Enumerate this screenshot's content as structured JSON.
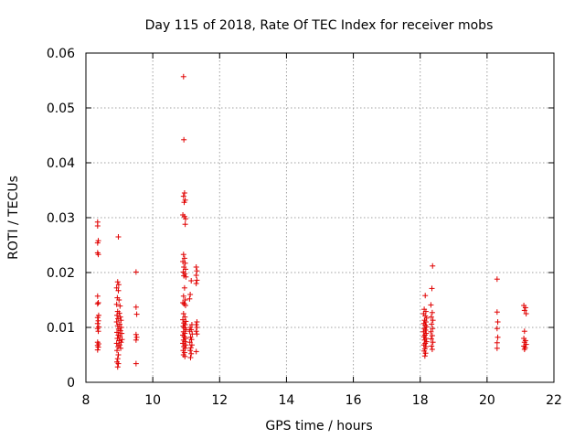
{
  "chart_data": {
    "type": "scatter",
    "title": "Day 115 of 2018, Rate Of TEC Index for receiver mobs",
    "xlabel": "GPS time / hours",
    "ylabel": "ROTI / TECUs",
    "xlim": [
      8,
      22
    ],
    "ylim": [
      0,
      0.06
    ],
    "xticks": [
      "8",
      "10",
      "12",
      "14",
      "16",
      "18",
      "20",
      "22"
    ],
    "yticks": [
      "0",
      "0.01",
      "0.02",
      "0.03",
      "0.04",
      "0.05",
      "0.06"
    ],
    "grid": true,
    "marker": "+",
    "color": "#e00000",
    "series": [
      {
        "name": "mobs",
        "points": [
          [
            8.35,
            0.0292
          ],
          [
            8.35,
            0.0285
          ],
          [
            8.37,
            0.0258
          ],
          [
            8.35,
            0.0254
          ],
          [
            8.35,
            0.0236
          ],
          [
            8.37,
            0.0233
          ],
          [
            8.35,
            0.0157
          ],
          [
            8.37,
            0.0145
          ],
          [
            8.35,
            0.0143
          ],
          [
            8.38,
            0.0122
          ],
          [
            8.35,
            0.0118
          ],
          [
            8.37,
            0.0112
          ],
          [
            8.35,
            0.0107
          ],
          [
            8.38,
            0.0101
          ],
          [
            8.35,
            0.0098
          ],
          [
            8.37,
            0.0093
          ],
          [
            8.35,
            0.0073
          ],
          [
            8.38,
            0.007
          ],
          [
            8.35,
            0.0067
          ],
          [
            8.37,
            0.0064
          ],
          [
            8.35,
            0.0059
          ],
          [
            8.97,
            0.0265
          ],
          [
            8.95,
            0.0183
          ],
          [
            8.98,
            0.0178
          ],
          [
            8.92,
            0.0172
          ],
          [
            8.97,
            0.0167
          ],
          [
            8.94,
            0.0154
          ],
          [
            8.99,
            0.015
          ],
          [
            8.92,
            0.0142
          ],
          [
            9.02,
            0.0139
          ],
          [
            8.95,
            0.0129
          ],
          [
            9.0,
            0.0126
          ],
          [
            8.93,
            0.0122
          ],
          [
            9.03,
            0.0119
          ],
          [
            8.96,
            0.0116
          ],
          [
            9.05,
            0.0113
          ],
          [
            8.92,
            0.011
          ],
          [
            9.01,
            0.0106
          ],
          [
            8.95,
            0.0103
          ],
          [
            9.06,
            0.01
          ],
          [
            8.98,
            0.0097
          ],
          [
            9.03,
            0.0094
          ],
          [
            8.93,
            0.0091
          ],
          [
            9.07,
            0.0089
          ],
          [
            8.97,
            0.0086
          ],
          [
            9.02,
            0.0083
          ],
          [
            8.94,
            0.008
          ],
          [
            9.08,
            0.0078
          ],
          [
            8.99,
            0.0076
          ],
          [
            9.05,
            0.0073
          ],
          [
            8.92,
            0.0071
          ],
          [
            9.01,
            0.0068
          ],
          [
            8.96,
            0.0065
          ],
          [
            9.04,
            0.0062
          ],
          [
            8.93,
            0.0058
          ],
          [
            8.97,
            0.005
          ],
          [
            8.95,
            0.0043
          ],
          [
            8.93,
            0.0037
          ],
          [
            8.97,
            0.0034
          ],
          [
            8.95,
            0.0028
          ],
          [
            9.5,
            0.0201
          ],
          [
            9.5,
            0.0137
          ],
          [
            9.52,
            0.0124
          ],
          [
            9.5,
            0.0087
          ],
          [
            9.52,
            0.0082
          ],
          [
            9.5,
            0.0077
          ],
          [
            9.5,
            0.0034
          ],
          [
            10.92,
            0.0557
          ],
          [
            10.93,
            0.0442
          ],
          [
            10.95,
            0.0345
          ],
          [
            10.92,
            0.0339
          ],
          [
            10.97,
            0.0332
          ],
          [
            10.94,
            0.0328
          ],
          [
            10.9,
            0.0305
          ],
          [
            10.95,
            0.0302
          ],
          [
            10.98,
            0.0298
          ],
          [
            10.97,
            0.0288
          ],
          [
            10.92,
            0.0233
          ],
          [
            10.95,
            0.0226
          ],
          [
            10.9,
            0.022
          ],
          [
            10.97,
            0.0217
          ],
          [
            10.93,
            0.021
          ],
          [
            10.98,
            0.0206
          ],
          [
            10.91,
            0.0201
          ],
          [
            10.96,
            0.0198
          ],
          [
            10.93,
            0.0194
          ],
          [
            10.99,
            0.0192
          ],
          [
            10.95,
            0.0172
          ],
          [
            10.92,
            0.0157
          ],
          [
            10.97,
            0.015
          ],
          [
            10.9,
            0.0145
          ],
          [
            10.94,
            0.0143
          ],
          [
            10.98,
            0.014
          ],
          [
            10.92,
            0.0125
          ],
          [
            10.96,
            0.0119
          ],
          [
            10.9,
            0.0114
          ],
          [
            10.99,
            0.0111
          ],
          [
            10.93,
            0.0108
          ],
          [
            10.97,
            0.0105
          ],
          [
            10.91,
            0.0102
          ],
          [
            10.95,
            0.0099
          ],
          [
            10.99,
            0.0096
          ],
          [
            10.92,
            0.0092
          ],
          [
            10.96,
            0.0089
          ],
          [
            10.9,
            0.0086
          ],
          [
            10.94,
            0.0083
          ],
          [
            10.98,
            0.008
          ],
          [
            10.92,
            0.0077
          ],
          [
            10.96,
            0.0074
          ],
          [
            10.9,
            0.0071
          ],
          [
            10.99,
            0.0068
          ],
          [
            10.93,
            0.0065
          ],
          [
            10.97,
            0.0062
          ],
          [
            10.91,
            0.0058
          ],
          [
            10.95,
            0.0054
          ],
          [
            10.92,
            0.005
          ],
          [
            10.96,
            0.0047
          ],
          [
            11.15,
            0.0185
          ],
          [
            11.12,
            0.016
          ],
          [
            11.1,
            0.0152
          ],
          [
            11.17,
            0.0105
          ],
          [
            11.12,
            0.01
          ],
          [
            11.15,
            0.0096
          ],
          [
            11.1,
            0.0093
          ],
          [
            11.18,
            0.0088
          ],
          [
            11.13,
            0.0082
          ],
          [
            11.16,
            0.0078
          ],
          [
            11.11,
            0.0073
          ],
          [
            11.17,
            0.0068
          ],
          [
            11.14,
            0.0063
          ],
          [
            11.12,
            0.0058
          ],
          [
            11.15,
            0.0052
          ],
          [
            11.13,
            0.0045
          ],
          [
            11.3,
            0.021
          ],
          [
            11.32,
            0.0203
          ],
          [
            11.3,
            0.0195
          ],
          [
            11.32,
            0.0186
          ],
          [
            11.3,
            0.018
          ],
          [
            11.32,
            0.011
          ],
          [
            11.3,
            0.0105
          ],
          [
            11.32,
            0.01
          ],
          [
            11.3,
            0.0093
          ],
          [
            11.32,
            0.0088
          ],
          [
            11.3,
            0.0056
          ],
          [
            18.15,
            0.0158
          ],
          [
            18.12,
            0.0133
          ],
          [
            18.17,
            0.0129
          ],
          [
            18.1,
            0.0125
          ],
          [
            18.15,
            0.0121
          ],
          [
            18.19,
            0.0117
          ],
          [
            18.13,
            0.0113
          ],
          [
            18.17,
            0.011
          ],
          [
            18.11,
            0.0107
          ],
          [
            18.15,
            0.0104
          ],
          [
            18.19,
            0.0101
          ],
          [
            18.12,
            0.0098
          ],
          [
            18.16,
            0.0095
          ],
          [
            18.1,
            0.0092
          ],
          [
            18.18,
            0.0089
          ],
          [
            18.14,
            0.0086
          ],
          [
            18.11,
            0.0083
          ],
          [
            18.17,
            0.008
          ],
          [
            18.13,
            0.0077
          ],
          [
            18.19,
            0.0074
          ],
          [
            18.15,
            0.0071
          ],
          [
            18.11,
            0.0068
          ],
          [
            18.17,
            0.0065
          ],
          [
            18.14,
            0.0061
          ],
          [
            18.12,
            0.0057
          ],
          [
            18.16,
            0.0053
          ],
          [
            18.14,
            0.0048
          ],
          [
            18.37,
            0.0212
          ],
          [
            18.35,
            0.0171
          ],
          [
            18.32,
            0.0141
          ],
          [
            18.36,
            0.0127
          ],
          [
            18.33,
            0.0119
          ],
          [
            18.38,
            0.0113
          ],
          [
            18.34,
            0.0106
          ],
          [
            18.37,
            0.0098
          ],
          [
            18.32,
            0.0092
          ],
          [
            18.36,
            0.0085
          ],
          [
            18.33,
            0.0079
          ],
          [
            18.38,
            0.0073
          ],
          [
            18.34,
            0.0066
          ],
          [
            18.36,
            0.006
          ],
          [
            20.3,
            0.0188
          ],
          [
            20.3,
            0.0128
          ],
          [
            20.32,
            0.011
          ],
          [
            20.3,
            0.0098
          ],
          [
            20.32,
            0.0082
          ],
          [
            20.3,
            0.0072
          ],
          [
            20.3,
            0.0062
          ],
          [
            21.1,
            0.014
          ],
          [
            21.15,
            0.0136
          ],
          [
            21.12,
            0.0131
          ],
          [
            21.17,
            0.0125
          ],
          [
            21.12,
            0.0093
          ],
          [
            21.1,
            0.008
          ],
          [
            21.15,
            0.0076
          ],
          [
            21.12,
            0.0073
          ],
          [
            21.17,
            0.0069
          ],
          [
            21.1,
            0.0066
          ],
          [
            21.14,
            0.0063
          ],
          [
            21.12,
            0.006
          ]
        ]
      }
    ]
  }
}
